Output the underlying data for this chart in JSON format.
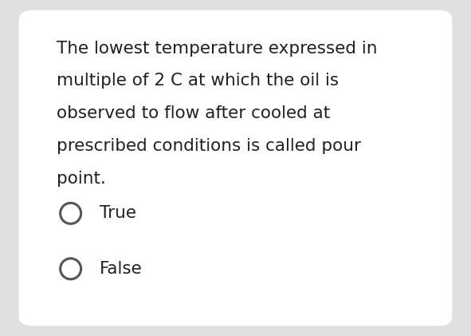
{
  "bg_outer": "#e0e0e0",
  "bg_card": "#ffffff",
  "question_line1": "The lowest temperature expressed in ",
  "question_star": "*",
  "question_line2": "multiple of 2 C at which the oil is",
  "question_line3": "observed to flow after cooled at",
  "question_line4": "prescribed conditions is called pour",
  "question_line5": "point.",
  "option1": "True",
  "option2": "False",
  "text_color": "#212121",
  "star_color": "#cc0000",
  "font_size_question": 15.5,
  "font_size_option": 15.5,
  "circle_color": "#555555",
  "circle_lw": 2.2
}
